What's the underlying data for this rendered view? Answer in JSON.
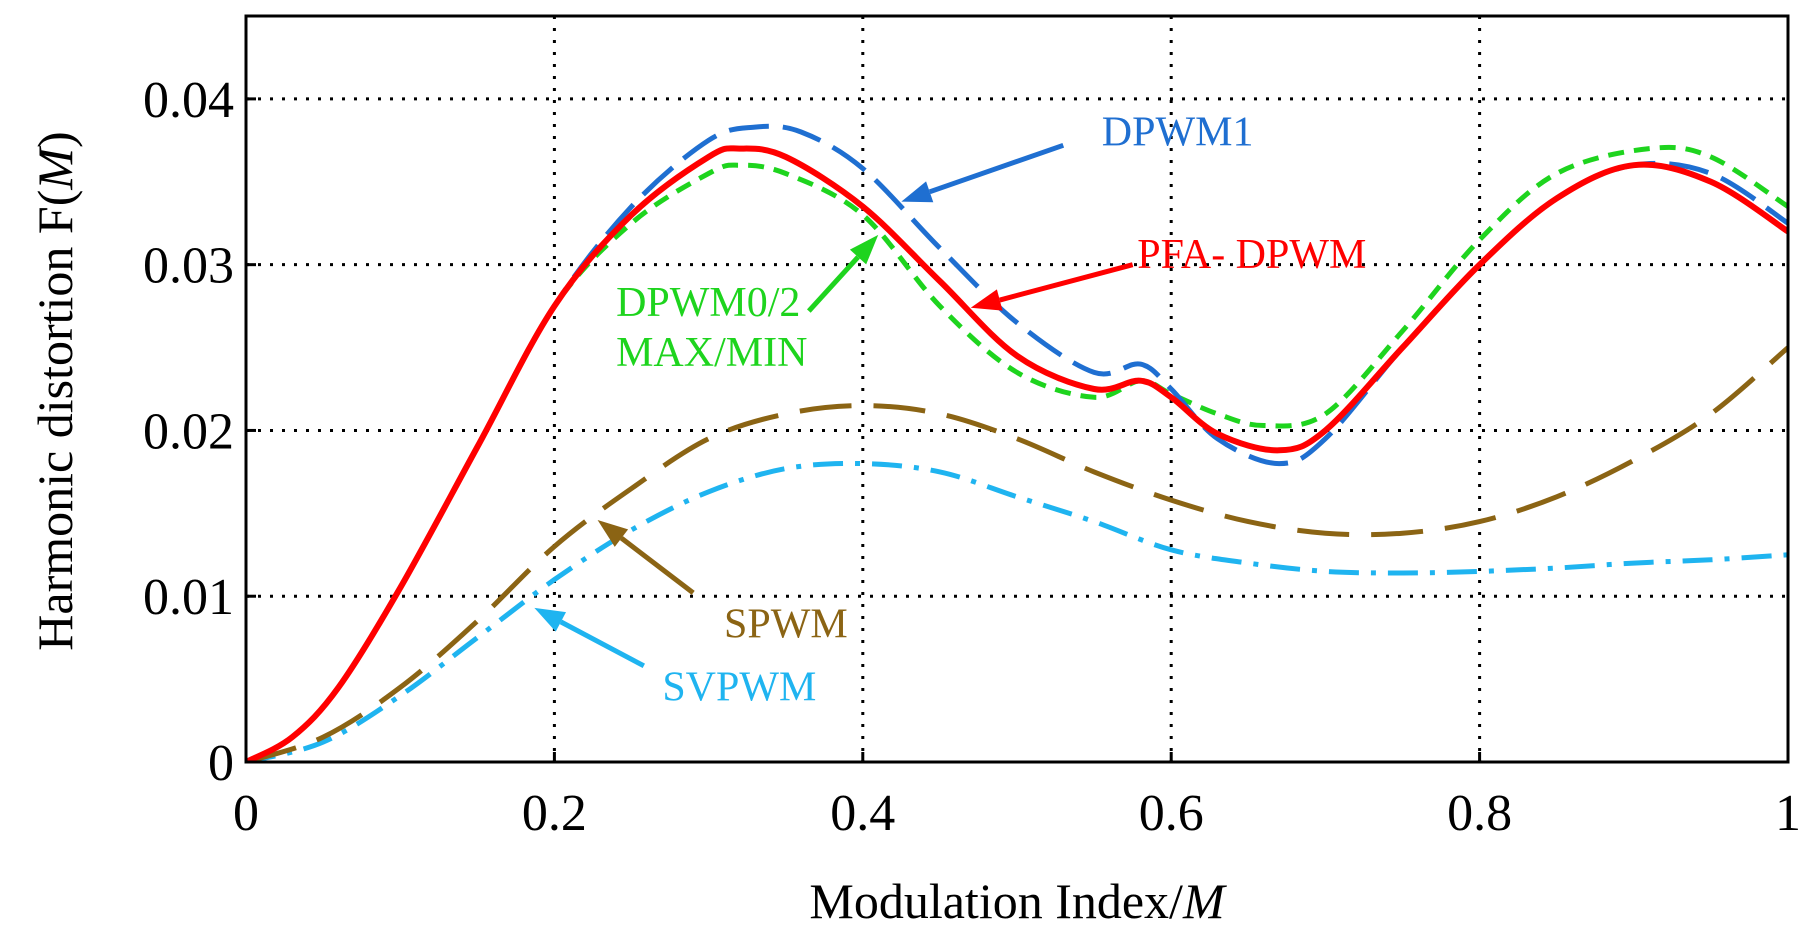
{
  "chart_data": {
    "type": "line",
    "xlabel": "Modulation Index/",
    "xlabel_var": "M",
    "ylabel": "Harmonic distortion   F(",
    "ylabel_var": "M",
    "ylabel_close": ")",
    "xlim": [
      0,
      1
    ],
    "ylim": [
      0,
      0.045
    ],
    "grid": true,
    "xticks": [
      0,
      0.2,
      0.4,
      0.6,
      0.8,
      1
    ],
    "xtick_labels": [
      "0",
      "0.2",
      "0.4",
      "0.6",
      "0.8",
      "1"
    ],
    "yticks": [
      0,
      0.01,
      0.02,
      0.03,
      0.04
    ],
    "ytick_labels": [
      "0",
      "0.01",
      "0.02",
      "0.03",
      "0.04"
    ],
    "series": [
      {
        "name": "DPWM1",
        "color": "#1f6fd1",
        "dash": "dashed",
        "x": [
          0,
          0.03,
          0.06,
          0.1,
          0.15,
          0.2,
          0.25,
          0.3,
          0.33,
          0.36,
          0.4,
          0.45,
          0.5,
          0.55,
          0.58,
          0.6,
          0.63,
          0.67,
          0.7,
          0.75,
          0.8,
          0.85,
          0.9,
          0.95,
          1.0
        ],
        "values": [
          0,
          0.0015,
          0.0045,
          0.0105,
          0.019,
          0.0275,
          0.0335,
          0.0375,
          0.0383,
          0.038,
          0.0358,
          0.031,
          0.0265,
          0.0235,
          0.024,
          0.0225,
          0.0195,
          0.018,
          0.0195,
          0.025,
          0.03,
          0.034,
          0.036,
          0.0355,
          0.0325
        ]
      },
      {
        "name": "PFA- DPWM",
        "color": "#ff0000",
        "dash": "solid",
        "x": [
          0,
          0.03,
          0.06,
          0.1,
          0.15,
          0.2,
          0.25,
          0.3,
          0.32,
          0.35,
          0.4,
          0.45,
          0.5,
          0.55,
          0.58,
          0.6,
          0.63,
          0.67,
          0.7,
          0.75,
          0.8,
          0.85,
          0.9,
          0.95,
          1.0
        ],
        "values": [
          0,
          0.0015,
          0.0045,
          0.0105,
          0.019,
          0.0275,
          0.033,
          0.0365,
          0.037,
          0.0365,
          0.0335,
          0.029,
          0.0245,
          0.0225,
          0.023,
          0.022,
          0.0198,
          0.0188,
          0.02,
          0.025,
          0.03,
          0.034,
          0.036,
          0.035,
          0.032
        ]
      },
      {
        "name": "DPWM0/2 MAX/MIN",
        "color": "#1ed41e",
        "dash": "short-dash",
        "x": [
          0,
          0.03,
          0.06,
          0.1,
          0.15,
          0.2,
          0.25,
          0.3,
          0.32,
          0.35,
          0.4,
          0.45,
          0.5,
          0.55,
          0.58,
          0.6,
          0.63,
          0.66,
          0.7,
          0.75,
          0.8,
          0.85,
          0.91,
          0.95,
          1.0
        ],
        "values": [
          0,
          0.0015,
          0.0045,
          0.0105,
          0.019,
          0.0275,
          0.0325,
          0.0355,
          0.036,
          0.0355,
          0.033,
          0.0275,
          0.0235,
          0.022,
          0.023,
          0.0222,
          0.021,
          0.0203,
          0.021,
          0.026,
          0.0315,
          0.0355,
          0.037,
          0.0365,
          0.0335
        ]
      },
      {
        "name": "SPWM",
        "color": "#8b6414",
        "dash": "long-dash",
        "x": [
          0,
          0.05,
          0.1,
          0.15,
          0.2,
          0.25,
          0.3,
          0.35,
          0.4,
          0.45,
          0.5,
          0.55,
          0.6,
          0.65,
          0.7,
          0.75,
          0.8,
          0.85,
          0.9,
          0.95,
          1.0
        ],
        "values": [
          0,
          0.0015,
          0.0045,
          0.0085,
          0.013,
          0.0165,
          0.0195,
          0.021,
          0.0215,
          0.021,
          0.0195,
          0.0175,
          0.0158,
          0.0145,
          0.0138,
          0.0138,
          0.0145,
          0.016,
          0.0182,
          0.021,
          0.025
        ]
      },
      {
        "name": "SVPWM",
        "color": "#1fb4f0",
        "dash": "dash-dot",
        "x": [
          0,
          0.05,
          0.1,
          0.15,
          0.2,
          0.25,
          0.3,
          0.35,
          0.4,
          0.45,
          0.5,
          0.55,
          0.6,
          0.65,
          0.7,
          0.75,
          0.8,
          0.85,
          0.9,
          0.95,
          1.0
        ],
        "values": [
          0,
          0.0012,
          0.004,
          0.0075,
          0.011,
          0.014,
          0.0163,
          0.0177,
          0.018,
          0.0175,
          0.016,
          0.0145,
          0.0128,
          0.012,
          0.0115,
          0.0114,
          0.0115,
          0.0117,
          0.012,
          0.0122,
          0.0125
        ]
      }
    ],
    "annotations": [
      {
        "lines": [
          "DPWM1"
        ],
        "color": "#1f6fd1",
        "text_at": [
          0.555,
          0.0372
        ],
        "arrow_from": [
          0.53,
          0.0372
        ],
        "arrow_to": [
          0.425,
          0.0338
        ]
      },
      {
        "lines": [
          "PFA- DPWM"
        ],
        "color": "#ff0000",
        "text_at": [
          0.578,
          0.0298
        ],
        "arrow_from": [
          0.575,
          0.03
        ],
        "arrow_to": [
          0.47,
          0.0274
        ]
      },
      {
        "lines": [
          "DPWM0/2",
          "MAX/MIN"
        ],
        "color": "#1ed41e",
        "text_at": [
          0.24,
          0.0269
        ],
        "arrow_from": [
          0.365,
          0.0272
        ],
        "arrow_to": [
          0.41,
          0.0318
        ]
      },
      {
        "lines": [
          "SPWM"
        ],
        "color": "#8b6414",
        "text_at": [
          0.31,
          0.0075
        ],
        "arrow_from": [
          0.29,
          0.0102
        ],
        "arrow_to": [
          0.228,
          0.0146
        ]
      },
      {
        "lines": [
          "SVPWM"
        ],
        "color": "#1fb4f0",
        "text_at": [
          0.27,
          0.0037
        ],
        "arrow_from": [
          0.258,
          0.0058
        ],
        "arrow_to": [
          0.187,
          0.0093
        ]
      }
    ]
  }
}
